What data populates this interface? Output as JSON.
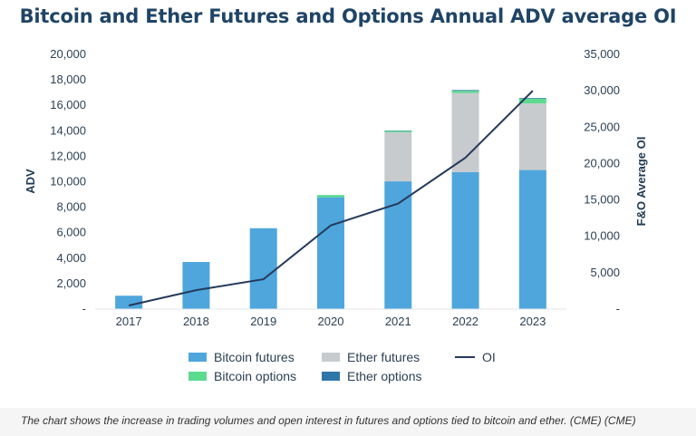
{
  "chart_data": {
    "type": "bar",
    "title": "Bitcoin and Ether Futures and Options Annual ADV average OI",
    "ylabel": "ADV",
    "y2label": "F&O Average OI",
    "categories": [
      "2017",
      "2018",
      "2019",
      "2020",
      "2021",
      "2022",
      "2023"
    ],
    "ylim": [
      0,
      20000
    ],
    "y2lim": [
      0,
      35000
    ],
    "yticks": [
      "-",
      "2,000",
      "4,000",
      "6,000",
      "8,000",
      "10,000",
      "12,000",
      "14,000",
      "16,000",
      "18,000",
      "20,000"
    ],
    "y2ticks": [
      "-",
      "5,000",
      "10,000",
      "15,000",
      "20,000",
      "25,000",
      "30,000",
      "35,000"
    ],
    "stacked": true,
    "series": [
      {
        "name": "Bitcoin futures",
        "color": "#4ea6dc",
        "values": [
          1050,
          3700,
          6350,
          8780,
          10030,
          10750,
          10920
        ]
      },
      {
        "name": "Ether futures",
        "color": "#c7cbce",
        "values": [
          0,
          0,
          0,
          0,
          3860,
          6220,
          5230
        ]
      },
      {
        "name": "Bitcoin options",
        "color": "#5cdb8f",
        "values": [
          0,
          0,
          0,
          180,
          100,
          170,
          380
        ]
      },
      {
        "name": "Ether options",
        "color": "#2e75a8",
        "values": [
          0,
          0,
          0,
          0,
          30,
          60,
          50
        ]
      }
    ],
    "line": {
      "name": "OI",
      "axis": "right",
      "color": "#253a5c",
      "values": [
        500,
        2600,
        4100,
        11500,
        14500,
        20800,
        30000
      ]
    },
    "grid": false,
    "legend": "bottom"
  },
  "caption": "The chart shows the increase in trading volumes and open interest in futures and options tied to bitcoin and ether. (CME) (CME)"
}
